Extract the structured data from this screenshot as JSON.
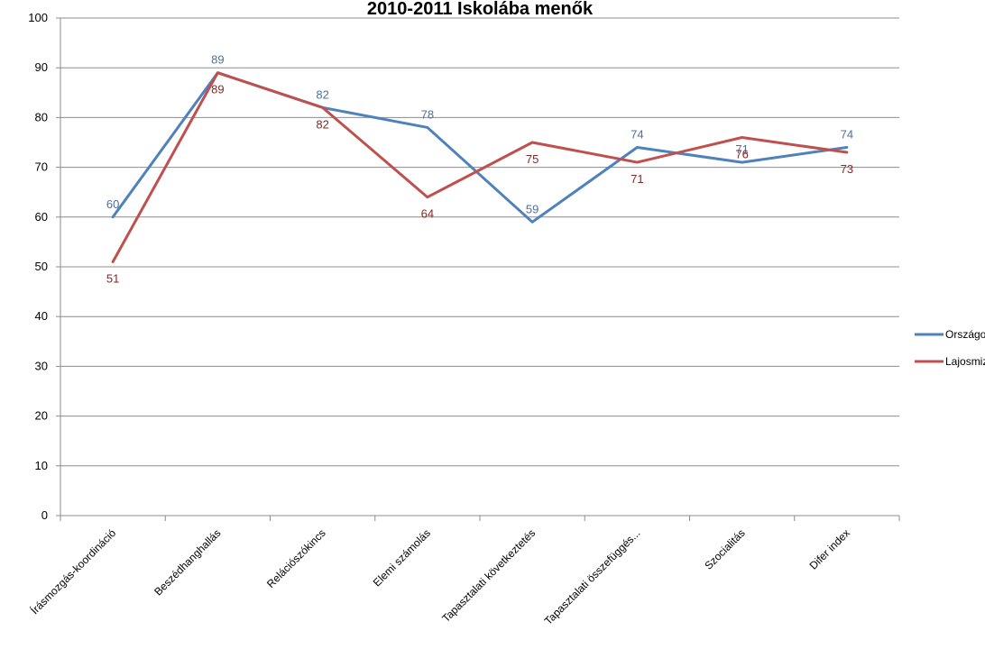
{
  "chart_data": {
    "type": "line",
    "title": "2010-2011 Iskolába menők",
    "xlabel": "",
    "ylabel": "",
    "ylim": [
      0,
      100
    ],
    "yticks": [
      0,
      10,
      20,
      30,
      40,
      50,
      60,
      70,
      80,
      90,
      100
    ],
    "grid": true,
    "legend_position": "right",
    "categories": [
      "Írásmozgás-koordináció",
      "Beszédhanghallás",
      "Relációszókincs",
      "Elemi számolás",
      "Tapasztalati következtetés",
      "Tapasztalati összefüggés...",
      "Szocialitás",
      "Difer index"
    ],
    "series": [
      {
        "name": "Országos",
        "color": "#4f81bd",
        "label_color": "#4f6f9f",
        "values": [
          60,
          89,
          82,
          78,
          59,
          74,
          71,
          74
        ],
        "labels": [
          "60",
          "89",
          "82",
          "78",
          "59",
          "74",
          "71",
          "74"
        ]
      },
      {
        "name": "Lajosmizse",
        "color": "#c0504d",
        "label_color": "#7f2a28",
        "values": [
          51,
          89,
          82,
          64,
          75,
          71,
          76,
          73
        ],
        "labels": [
          "51",
          "89",
          "82",
          "64",
          "75",
          "71",
          "76",
          "73"
        ]
      }
    ]
  }
}
